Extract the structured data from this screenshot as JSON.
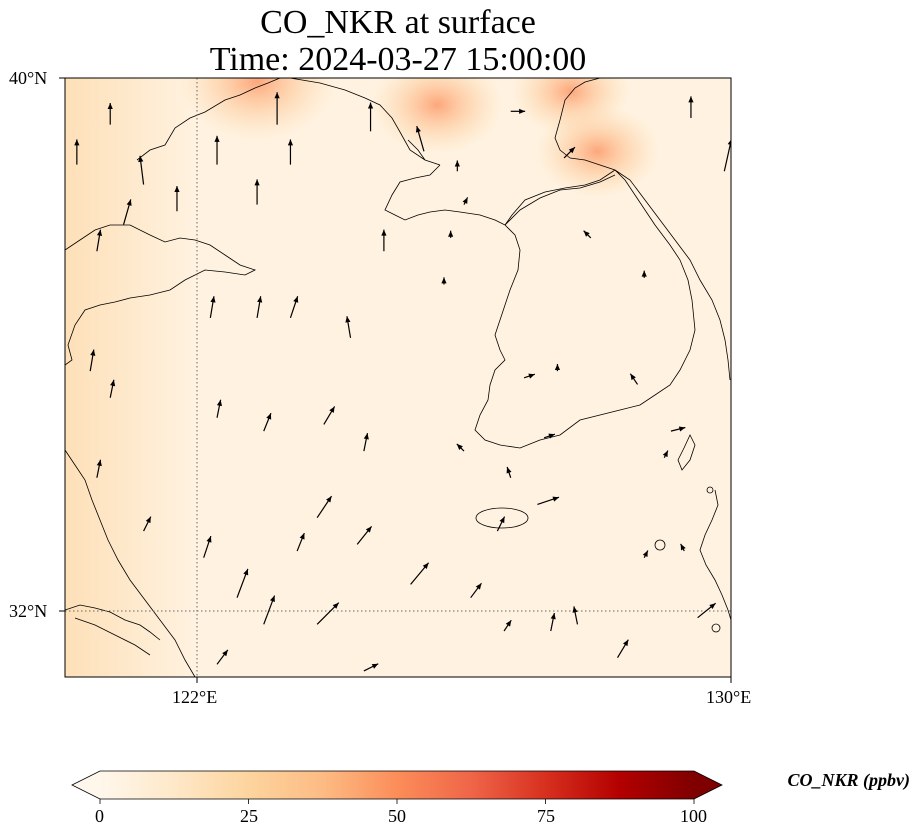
{
  "title": "CO_NKR at surface",
  "subtitle": "Time: 2024-03-27 15:00:00",
  "map": {
    "lon_range": [
      119,
      130
    ],
    "lat_range": [
      31,
      40
    ],
    "lat_ticks": [
      {
        "value": 40,
        "label": "40°N"
      },
      {
        "value": 32,
        "label": "32°N"
      }
    ],
    "lon_ticks": [
      {
        "value": 122,
        "label": "122°E"
      },
      {
        "value": 130,
        "label": "130°E"
      }
    ],
    "gridlines": "dotted at 122°E and 32°N",
    "field_colormap": "OrRd",
    "hotspots_ppbv": [
      {
        "lon": 122.9,
        "lat": 39.95,
        "value": 45
      },
      {
        "lon": 125.6,
        "lat": 39.6,
        "value": 35
      },
      {
        "lon": 127.6,
        "lat": 39.8,
        "value": 30
      },
      {
        "lon": 128.0,
        "lat": 38.9,
        "value": 32
      },
      {
        "lon": 119.3,
        "lat": 38.5,
        "value": 20
      }
    ],
    "wind_vectors": [
      {
        "lon": 119.3,
        "lat": 39.4,
        "u": 0.3,
        "v": 1.0
      },
      {
        "lon": 119.7,
        "lat": 39.0,
        "u": 0.2,
        "v": 1.0
      },
      {
        "lon": 120.7,
        "lat": 39.3,
        "u": 0.0,
        "v": 0.6
      },
      {
        "lon": 121.2,
        "lat": 38.4,
        "u": -0.1,
        "v": 0.8
      },
      {
        "lon": 120.2,
        "lat": 38.7,
        "u": 0.0,
        "v": 0.7
      },
      {
        "lon": 121.7,
        "lat": 38.0,
        "u": 0.0,
        "v": 0.7
      },
      {
        "lon": 120.9,
        "lat": 37.8,
        "u": 0.2,
        "v": 0.7
      },
      {
        "lon": 120.5,
        "lat": 37.4,
        "u": 0.1,
        "v": 0.6
      },
      {
        "lon": 122.3,
        "lat": 38.7,
        "u": 0.0,
        "v": 0.8
      },
      {
        "lon": 123.2,
        "lat": 39.3,
        "u": 0.0,
        "v": 0.9
      },
      {
        "lon": 123.4,
        "lat": 38.7,
        "u": 0.0,
        "v": 0.7
      },
      {
        "lon": 122.9,
        "lat": 38.1,
        "u": 0.0,
        "v": 0.7
      },
      {
        "lon": 124.6,
        "lat": 39.2,
        "u": 0.0,
        "v": 0.8
      },
      {
        "lon": 125.4,
        "lat": 38.9,
        "u": -0.2,
        "v": 0.7
      },
      {
        "lon": 124.8,
        "lat": 37.4,
        "u": 0.0,
        "v": 0.6
      },
      {
        "lon": 122.2,
        "lat": 36.4,
        "u": 0.1,
        "v": 0.6
      },
      {
        "lon": 122.9,
        "lat": 36.4,
        "u": 0.1,
        "v": 0.6
      },
      {
        "lon": 123.4,
        "lat": 36.4,
        "u": 0.2,
        "v": 0.6
      },
      {
        "lon": 124.3,
        "lat": 36.1,
        "u": -0.1,
        "v": 0.6
      },
      {
        "lon": 120.4,
        "lat": 35.6,
        "u": 0.1,
        "v": 0.6
      },
      {
        "lon": 120.7,
        "lat": 35.2,
        "u": 0.1,
        "v": 0.5
      },
      {
        "lon": 122.3,
        "lat": 34.9,
        "u": 0.1,
        "v": 0.5
      },
      {
        "lon": 123.0,
        "lat": 34.7,
        "u": 0.2,
        "v": 0.5
      },
      {
        "lon": 123.9,
        "lat": 34.8,
        "u": 0.3,
        "v": 0.5
      },
      {
        "lon": 124.5,
        "lat": 34.4,
        "u": 0.1,
        "v": 0.5
      },
      {
        "lon": 119.8,
        "lat": 33.9,
        "u": 0.2,
        "v": 0.6
      },
      {
        "lon": 120.5,
        "lat": 34.0,
        "u": 0.1,
        "v": 0.5
      },
      {
        "lon": 121.2,
        "lat": 33.2,
        "u": 0.2,
        "v": 0.4
      },
      {
        "lon": 122.1,
        "lat": 32.8,
        "u": 0.2,
        "v": 0.6
      },
      {
        "lon": 123.8,
        "lat": 33.4,
        "u": 0.4,
        "v": 0.6
      },
      {
        "lon": 124.4,
        "lat": 33.0,
        "u": 0.4,
        "v": 0.5
      },
      {
        "lon": 123.5,
        "lat": 32.9,
        "u": 0.2,
        "v": 0.5
      },
      {
        "lon": 122.6,
        "lat": 32.2,
        "u": 0.3,
        "v": 0.8
      },
      {
        "lon": 123.0,
        "lat": 31.8,
        "u": 0.3,
        "v": 0.8
      },
      {
        "lon": 123.8,
        "lat": 31.8,
        "u": 0.6,
        "v": 0.6
      },
      {
        "lon": 125.2,
        "lat": 32.4,
        "u": 0.5,
        "v": 0.6
      },
      {
        "lon": 126.1,
        "lat": 32.2,
        "u": 0.3,
        "v": 0.4
      },
      {
        "lon": 126.6,
        "lat": 31.7,
        "u": 0.2,
        "v": 0.3
      },
      {
        "lon": 127.3,
        "lat": 31.7,
        "u": 0.1,
        "v": 0.5
      },
      {
        "lon": 127.7,
        "lat": 31.8,
        "u": -0.1,
        "v": 0.5
      },
      {
        "lon": 129.5,
        "lat": 31.9,
        "u": 0.5,
        "v": 0.4
      },
      {
        "lon": 128.3,
        "lat": 31.3,
        "u": 0.3,
        "v": 0.5
      },
      {
        "lon": 126.5,
        "lat": 33.2,
        "u": 0.2,
        "v": 0.4
      },
      {
        "lon": 127.1,
        "lat": 33.6,
        "u": 0.6,
        "v": 0.2
      },
      {
        "lon": 122.3,
        "lat": 31.2,
        "u": 0.3,
        "v": 0.4
      },
      {
        "lon": 124.5,
        "lat": 31.1,
        "u": 0.4,
        "v": 0.2
      },
      {
        "lon": 127.5,
        "lat": 38.8,
        "u": 0.3,
        "v": 0.3
      },
      {
        "lon": 125.9,
        "lat": 38.6,
        "u": 0.0,
        "v": 0.3
      },
      {
        "lon": 126.7,
        "lat": 39.5,
        "u": 0.4,
        "v": 0.0
      },
      {
        "lon": 129.4,
        "lat": 39.4,
        "u": 0.0,
        "v": 0.6
      },
      {
        "lon": 129.9,
        "lat": 38.6,
        "u": 0.2,
        "v": 0.9
      },
      {
        "lon": 130.0,
        "lat": 37.2,
        "u": 0.2,
        "v": 0.6
      },
      {
        "lon": 127.9,
        "lat": 37.6,
        "u": -0.2,
        "v": 0.2
      },
      {
        "lon": 128.7,
        "lat": 37.0,
        "u": 0.0,
        "v": 0.2
      },
      {
        "lon": 127.4,
        "lat": 35.6,
        "u": 0.0,
        "v": 0.2
      },
      {
        "lon": 126.9,
        "lat": 35.5,
        "u": 0.3,
        "v": 0.1
      },
      {
        "lon": 128.6,
        "lat": 35.4,
        "u": -0.2,
        "v": 0.3
      },
      {
        "lon": 129.1,
        "lat": 34.7,
        "u": 0.4,
        "v": 0.1
      },
      {
        "lon": 127.2,
        "lat": 34.6,
        "u": 0.3,
        "v": 0.1
      },
      {
        "lon": 126.7,
        "lat": 34.0,
        "u": -0.1,
        "v": 0.3
      },
      {
        "lon": 129.0,
        "lat": 34.3,
        "u": 0.1,
        "v": 0.2
      },
      {
        "lon": 128.7,
        "lat": 32.8,
        "u": 0.1,
        "v": 0.2
      },
      {
        "lon": 129.3,
        "lat": 32.9,
        "u": -0.1,
        "v": 0.2
      },
      {
        "lon": 126.0,
        "lat": 34.4,
        "u": -0.2,
        "v": 0.2
      },
      {
        "lon": 125.7,
        "lat": 36.9,
        "u": 0.0,
        "v": 0.2
      },
      {
        "lon": 125.8,
        "lat": 37.6,
        "u": 0.0,
        "v": 0.2
      },
      {
        "lon": 126.0,
        "lat": 38.1,
        "u": 0.1,
        "v": 0.2
      }
    ]
  },
  "colorbar": {
    "label": "CO_NKR (ppbv)",
    "min": 0,
    "max": 100,
    "extend": "both",
    "ticks": [
      {
        "value": 0,
        "label": "0"
      },
      {
        "value": 25,
        "label": "25"
      },
      {
        "value": 50,
        "label": "50"
      },
      {
        "value": 75,
        "label": "75"
      },
      {
        "value": 100,
        "label": "100"
      }
    ],
    "colors": [
      "#fff7ec",
      "#fee8c8",
      "#fdd49e",
      "#fdbb84",
      "#fc8d59",
      "#ef6548",
      "#d7301f",
      "#b30000",
      "#7f0000"
    ]
  }
}
